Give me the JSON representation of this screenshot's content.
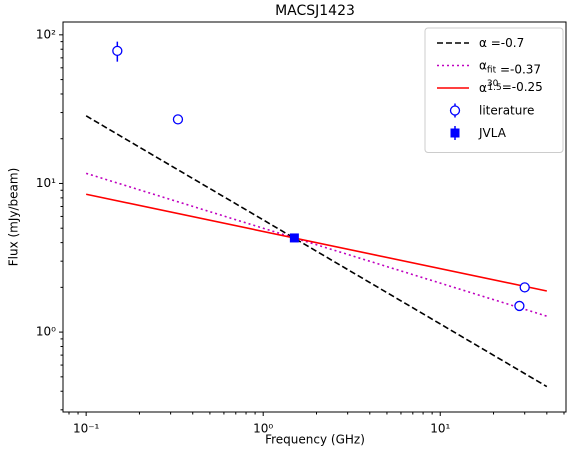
{
  "chart_data": {
    "type": "line",
    "title": "MACSJ1423",
    "xlabel": "Frequency (GHz)",
    "ylabel": "Flux (mJy/beam)",
    "xscale": "log",
    "yscale": "log",
    "xlim": [
      0.074,
      52
    ],
    "ylim": [
      0.29,
      122
    ],
    "xticks": [
      {
        "value": 0.1,
        "label": "10⁻¹"
      },
      {
        "value": 1,
        "label": "10⁰"
      },
      {
        "value": 10,
        "label": "10¹"
      }
    ],
    "yticks": [
      {
        "value": 1,
        "label": "10⁰"
      },
      {
        "value": 10,
        "label": "10¹"
      },
      {
        "value": 100,
        "label": "10²"
      }
    ],
    "legend": "upper right",
    "series": [
      {
        "name": [
          {
            "text": "α"
          },
          {
            "text": " =-0.7"
          }
        ],
        "color": "#000000",
        "style": "dashed",
        "x": [
          0.1,
          40
        ],
        "values": [
          28.5,
          0.43
        ]
      },
      {
        "name": [
          {
            "text": "α"
          },
          {
            "text": "fit",
            "shift": "sub"
          },
          {
            "text": " =-0.37"
          }
        ],
        "color": "#bf00bf",
        "style": "dotted",
        "x": [
          0.1,
          40
        ],
        "values": [
          11.7,
          1.28
        ]
      },
      {
        "name": [
          {
            "text": "α"
          },
          {
            "text": "30",
            "shift": "super"
          },
          {
            "text": "1.5",
            "shift": "sub"
          },
          {
            "text": "=-0.25"
          }
        ],
        "color": "#ff0000",
        "style": "solid",
        "x": [
          0.1,
          40
        ],
        "values": [
          8.46,
          1.89
        ]
      },
      {
        "name": [
          {
            "text": "literature"
          }
        ],
        "color": "#0000ff",
        "style": "errorbar",
        "marker": "circle-open",
        "x": [
          0.15,
          0.33,
          30,
          28
        ],
        "values": [
          78,
          27,
          2.0,
          1.5
        ],
        "errors": [
          12,
          1,
          0.15,
          0.08
        ]
      },
      {
        "name": [
          {
            "text": "JVLA"
          }
        ],
        "color": "#0000ff",
        "style": "errorbar",
        "marker": "square",
        "x": [
          1.5
        ],
        "values": [
          4.3
        ],
        "errors": [
          0.2
        ]
      }
    ]
  }
}
